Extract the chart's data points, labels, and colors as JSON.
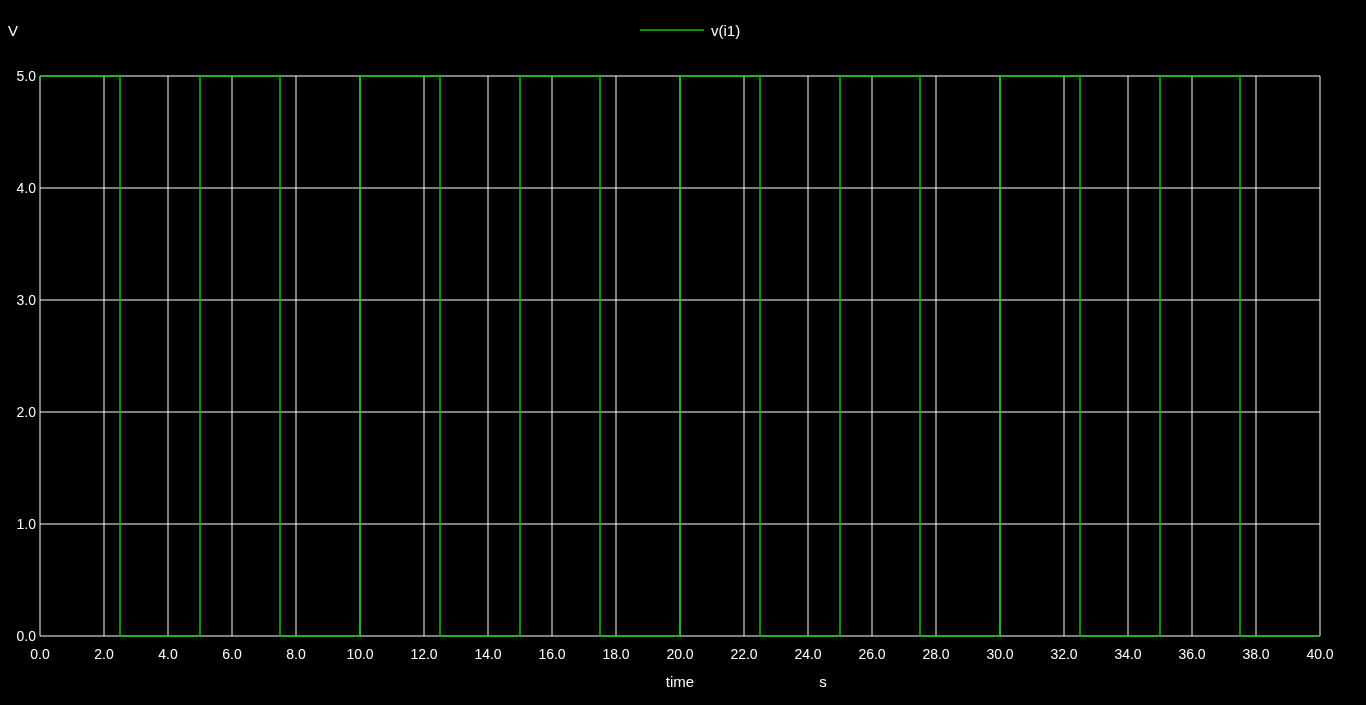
{
  "chart_data": {
    "type": "step",
    "xlabel": "time",
    "ylabel": "V",
    "annotations": [
      "s"
    ],
    "x": [
      0,
      2.5,
      5,
      7.5,
      10,
      12.5,
      15,
      17.5,
      20,
      22.5,
      25,
      27.5,
      30,
      32.5,
      35,
      37.5,
      40
    ],
    "series": [
      {
        "name": "v(i1)",
        "color": "#00c800",
        "values": [
          5,
          0,
          5,
          0,
          5,
          0,
          5,
          0,
          5,
          0,
          5,
          0,
          5,
          0,
          5,
          0,
          0
        ]
      }
    ],
    "xlim": [
      0,
      40
    ],
    "ylim": [
      0,
      5
    ],
    "xticks": [
      {
        "value": 0,
        "label": "0.0"
      },
      {
        "value": 2,
        "label": "2.0"
      },
      {
        "value": 4,
        "label": "4.0"
      },
      {
        "value": 6,
        "label": "6.0"
      },
      {
        "value": 8,
        "label": "8.0"
      },
      {
        "value": 10,
        "label": "10.0"
      },
      {
        "value": 12,
        "label": "12.0"
      },
      {
        "value": 14,
        "label": "14.0"
      },
      {
        "value": 16,
        "label": "16.0"
      },
      {
        "value": 18,
        "label": "18.0"
      },
      {
        "value": 20,
        "label": "20.0"
      },
      {
        "value": 22,
        "label": "22.0"
      },
      {
        "value": 24,
        "label": "24.0"
      },
      {
        "value": 26,
        "label": "26.0"
      },
      {
        "value": 28,
        "label": "28.0"
      },
      {
        "value": 30,
        "label": "30.0"
      },
      {
        "value": 32,
        "label": "32.0"
      },
      {
        "value": 34,
        "label": "34.0"
      },
      {
        "value": 36,
        "label": "36.0"
      },
      {
        "value": 38,
        "label": "38.0"
      },
      {
        "value": 40,
        "label": "40.0"
      }
    ],
    "yticks": [
      {
        "value": 0,
        "label": "0.0"
      },
      {
        "value": 1,
        "label": "1.0"
      },
      {
        "value": 2,
        "label": "2.0"
      },
      {
        "value": 3,
        "label": "3.0"
      },
      {
        "value": 4,
        "label": "4.0"
      },
      {
        "value": 5,
        "label": "5.0"
      }
    ],
    "grid": true,
    "legend": "top"
  }
}
